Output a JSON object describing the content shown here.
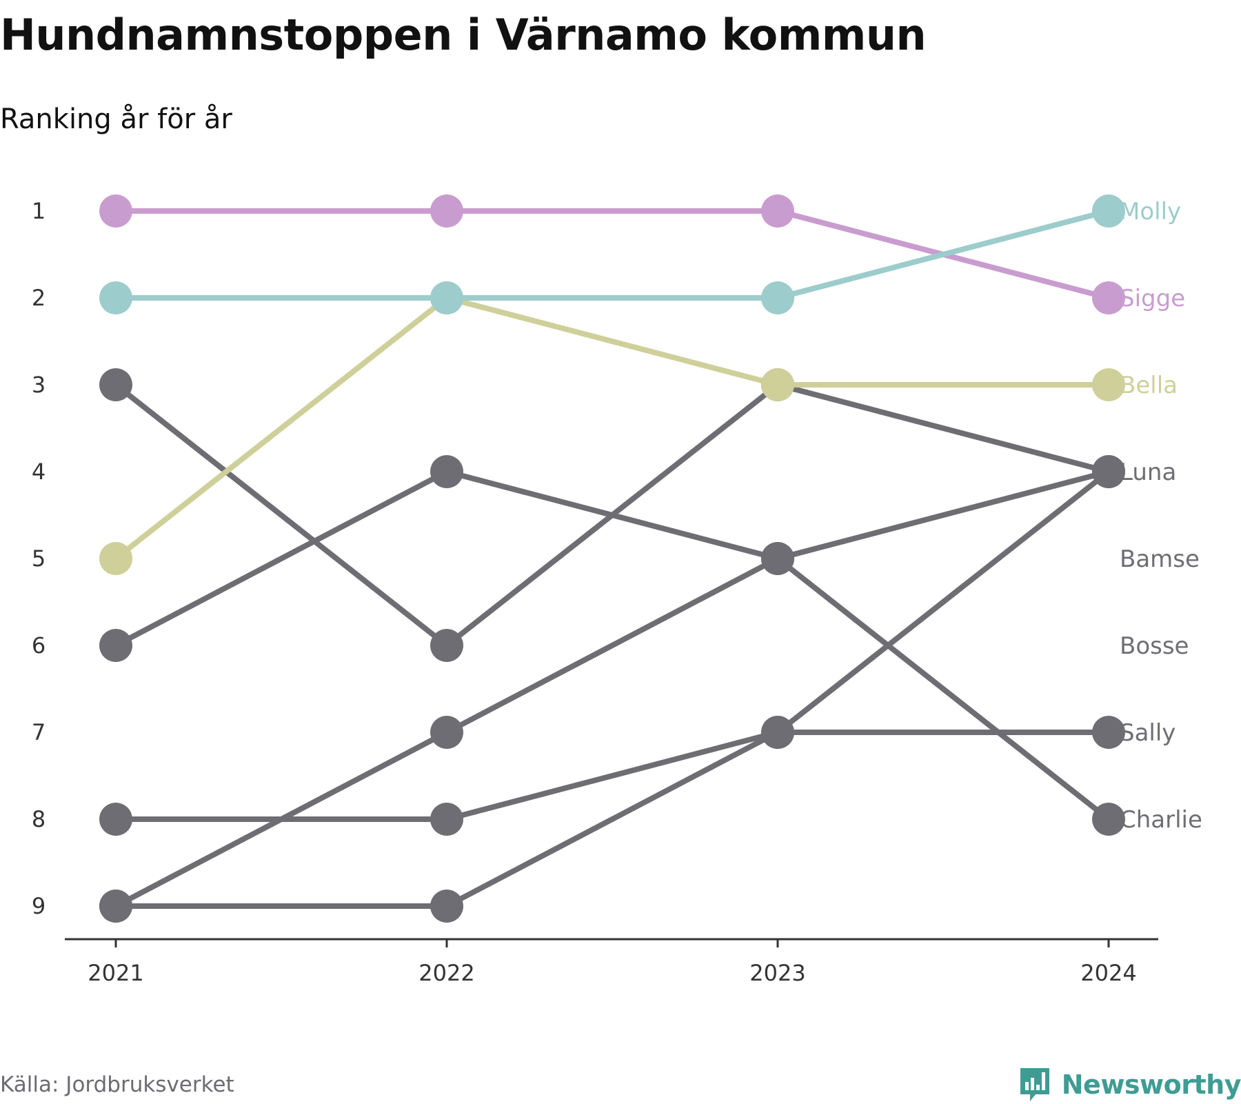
{
  "header": {
    "title": "Hundnamnstoppen i Värnamo kommun",
    "subtitle": "Ranking år för år"
  },
  "footer": {
    "source": "Källa: Jordbruksverket",
    "brand": "Newsworthy"
  },
  "colors": {
    "Molly": "#9ccccb",
    "Sigge": "#c99ccf",
    "Bella": "#cfcf9a",
    "other": "#6e6d73",
    "brand": "#3e9c93"
  },
  "chart_data": {
    "type": "line",
    "title": "Hundnamnstoppen i Värnamo kommun",
    "subtitle": "Ranking år för år",
    "x": [
      2021,
      2022,
      2023,
      2024
    ],
    "y_ticks": [
      1,
      2,
      3,
      4,
      5,
      6,
      7,
      8,
      9
    ],
    "y_reversed": true,
    "grid": false,
    "series": [
      {
        "name": "Sally",
        "values": [
          9,
          9,
          7,
          7
        ]
      },
      {
        "name": "Charlie",
        "values": [
          6,
          4,
          5,
          8
        ]
      },
      {
        "name": "Bosse",
        "values": [
          8,
          8,
          7,
          4
        ]
      },
      {
        "name": "Bamse",
        "values": [
          9,
          7,
          5,
          4
        ]
      },
      {
        "name": "Luna",
        "values": [
          3,
          6,
          3,
          4
        ]
      },
      {
        "name": "Bella",
        "values": [
          5,
          2,
          3,
          3
        ]
      },
      {
        "name": "Sigge",
        "values": [
          1,
          1,
          1,
          2
        ]
      },
      {
        "name": "Molly",
        "values": [
          2,
          2,
          2,
          1
        ]
      }
    ],
    "end_labels": [
      {
        "name": "Molly",
        "rank": 1
      },
      {
        "name": "Sigge",
        "rank": 2
      },
      {
        "name": "Bella",
        "rank": 3
      },
      {
        "name": "Luna",
        "rank": 4
      },
      {
        "name": "Bamse",
        "rank": 5
      },
      {
        "name": "Bosse",
        "rank": 6
      },
      {
        "name": "Sally",
        "rank": 7
      },
      {
        "name": "Charlie",
        "rank": 8
      }
    ]
  }
}
